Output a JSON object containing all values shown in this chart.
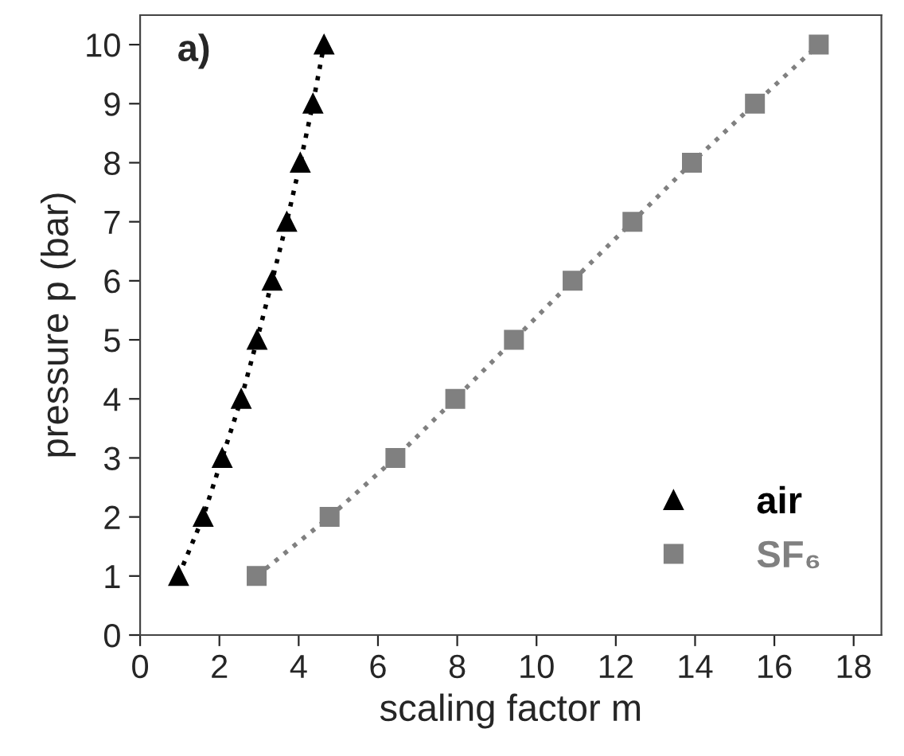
{
  "chart_data": {
    "type": "line",
    "xlabel": "scaling factor m",
    "ylabel": "pressure p (bar)",
    "annotations": [
      "a)"
    ],
    "xlim": [
      0,
      18.7
    ],
    "xticks": [
      0,
      2,
      4,
      6,
      8,
      10,
      12,
      14,
      16,
      18
    ],
    "ylim": [
      0,
      10.5
    ],
    "yticks": [
      0,
      1,
      2,
      3,
      4,
      5,
      6,
      7,
      8,
      9,
      10
    ],
    "grid": false,
    "legend": "bottom right",
    "line_style": "dotted",
    "series": [
      {
        "name": "air",
        "color": "#000000",
        "marker": "triangle",
        "x": [
          0.97,
          1.59,
          2.07,
          2.55,
          2.95,
          3.33,
          3.7,
          4.04,
          4.36,
          4.64
        ],
        "values": [
          1,
          2,
          3,
          4,
          5,
          6,
          7,
          8,
          9,
          10
        ]
      },
      {
        "name": "SF₆",
        "color": "#808080",
        "marker": "square",
        "x": [
          2.94,
          4.78,
          6.44,
          7.95,
          9.43,
          10.91,
          12.42,
          13.92,
          15.51,
          17.12
        ],
        "values": [
          1,
          2,
          3,
          4,
          5,
          6,
          7,
          8,
          9,
          10
        ]
      }
    ]
  }
}
